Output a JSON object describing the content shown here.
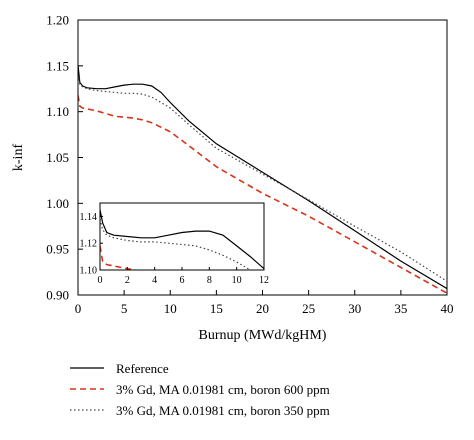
{
  "chart_data": [
    {
      "type": "line",
      "title": "",
      "xlabel": "Burnup (MWd/kgHM)",
      "ylabel": "k-inf",
      "xlim": [
        0,
        40
      ],
      "ylim": [
        0.9,
        1.2
      ],
      "xticks": [
        "0",
        "5",
        "10",
        "15",
        "20",
        "25",
        "30",
        "35",
        "40"
      ],
      "yticks": [
        "0.90",
        "0.95",
        "1.00",
        "1.05",
        "1.10",
        "1.15",
        "1.20"
      ],
      "grid": false,
      "legend_position": "below",
      "series": [
        {
          "name": "Reference",
          "color": "#000000",
          "style": "solid",
          "x": [
            0,
            0.2,
            0.5,
            1,
            2,
            3,
            4,
            5,
            6,
            7,
            8,
            9,
            10,
            12,
            15,
            20,
            25,
            30,
            35,
            40
          ],
          "y": [
            1.151,
            1.132,
            1.128,
            1.126,
            1.125,
            1.125,
            1.127,
            1.129,
            1.13,
            1.13,
            1.128,
            1.121,
            1.11,
            1.09,
            1.065,
            1.034,
            1.003,
            0.97,
            0.937,
            0.907
          ]
        },
        {
          "name": "3% Gd, MA 0.01981 cm, boron 600 ppm",
          "color": "#d9331a",
          "style": "dashed",
          "x": [
            0,
            0.2,
            0.5,
            1,
            2,
            3,
            4,
            5,
            6,
            7,
            8,
            10,
            12,
            15,
            20,
            25,
            30,
            35,
            40
          ],
          "y": [
            1.118,
            1.106,
            1.104,
            1.103,
            1.101,
            1.098,
            1.095,
            1.094,
            1.093,
            1.091,
            1.088,
            1.078,
            1.063,
            1.04,
            1.011,
            0.986,
            0.958,
            0.93,
            0.902
          ]
        },
        {
          "name": "3% Gd, MA 0.01981 cm, boron 350 ppm",
          "color": "#444444",
          "style": "dotted",
          "x": [
            0,
            0.2,
            0.5,
            1,
            2,
            4,
            5,
            6,
            7,
            8,
            10,
            12,
            15,
            20,
            25,
            30,
            35,
            40
          ],
          "y": [
            1.14,
            1.13,
            1.127,
            1.125,
            1.123,
            1.121,
            1.12,
            1.12,
            1.119,
            1.116,
            1.104,
            1.086,
            1.06,
            1.032,
            1.004,
            0.975,
            0.947,
            0.915
          ]
        }
      ]
    },
    {
      "type": "line",
      "title": "",
      "xlabel": "",
      "ylabel": "",
      "xlim": [
        0,
        12
      ],
      "ylim": [
        1.1,
        1.15
      ],
      "xticks": [
        "0",
        "2",
        "4",
        "6",
        "8",
        "10",
        "12"
      ],
      "yticks": [
        "1.10",
        "1.12",
        "1.14"
      ],
      "grid": false,
      "series": [
        {
          "name": "Reference",
          "color": "#000000",
          "style": "solid",
          "x": [
            0,
            0.2,
            0.5,
            1,
            2,
            3,
            4,
            5,
            6,
            7,
            8,
            9,
            10,
            11,
            12
          ],
          "y": [
            1.145,
            1.135,
            1.128,
            1.126,
            1.125,
            1.124,
            1.124,
            1.126,
            1.128,
            1.129,
            1.129,
            1.126,
            1.118,
            1.11,
            1.101
          ]
        },
        {
          "name": "3% Gd, MA 0.01981 cm, boron 600 ppm",
          "color": "#d9331a",
          "style": "dashed",
          "x": [
            0,
            0.2,
            0.5,
            1,
            2,
            2.6
          ],
          "y": [
            1.118,
            1.106,
            1.104,
            1.103,
            1.101,
            1.1
          ]
        },
        {
          "name": "3% Gd, MA 0.01981 cm, boron 350 ppm",
          "color": "#444444",
          "style": "dotted",
          "x": [
            0,
            0.2,
            0.5,
            1,
            2,
            3,
            4,
            5,
            6,
            7,
            8,
            9,
            10,
            11
          ],
          "y": [
            1.138,
            1.13,
            1.126,
            1.124,
            1.122,
            1.121,
            1.121,
            1.12,
            1.119,
            1.118,
            1.115,
            1.111,
            1.106,
            1.1
          ]
        }
      ]
    }
  ]
}
